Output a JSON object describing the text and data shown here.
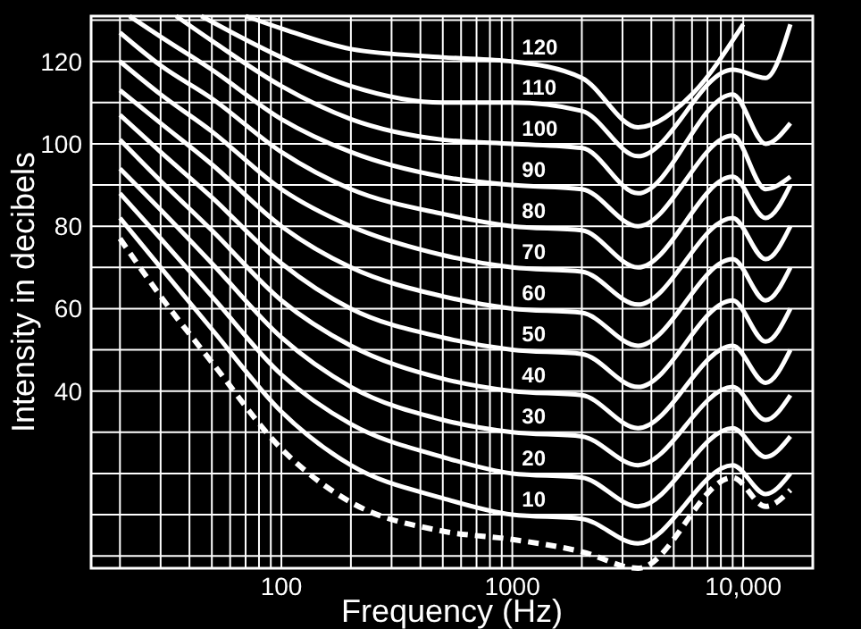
{
  "chart_data": {
    "type": "line",
    "xlabel": "Frequency (Hz)",
    "ylabel": "Intensity in decibels",
    "log": "x",
    "grid": true,
    "marker": "none",
    "xlim": [
      15,
      20000
    ],
    "ylim": [
      -3,
      131
    ],
    "xticks": [
      {
        "value": 20,
        "label": null
      },
      {
        "value": 30,
        "label": null
      },
      {
        "value": 40,
        "label": null
      },
      {
        "value": 50,
        "label": null
      },
      {
        "value": 60,
        "label": null
      },
      {
        "value": 70,
        "label": null
      },
      {
        "value": 80,
        "label": null
      },
      {
        "value": 90,
        "label": null
      },
      100,
      {
        "value": 200,
        "label": null
      },
      {
        "value": 300,
        "label": null
      },
      {
        "value": 400,
        "label": null
      },
      {
        "value": 500,
        "label": null
      },
      {
        "value": 600,
        "label": null
      },
      {
        "value": 700,
        "label": null
      },
      {
        "value": 800,
        "label": null
      },
      {
        "value": 900,
        "label": null
      },
      1000,
      {
        "value": 2000,
        "label": null
      },
      {
        "value": 3000,
        "label": null
      },
      {
        "value": 4000,
        "label": null
      },
      {
        "value": 5000,
        "label": null
      },
      {
        "value": 6000,
        "label": null
      },
      {
        "value": 7000,
        "label": null
      },
      {
        "value": 8000,
        "label": null
      },
      {
        "value": 9000,
        "label": null
      },
      {
        "value": 10000,
        "label": "10,000"
      }
    ],
    "yticks": [
      {
        "value": 0,
        "label": null
      },
      {
        "value": 10,
        "label": null
      },
      {
        "value": 20,
        "label": null
      },
      {
        "value": 30,
        "label": null
      },
      40,
      {
        "value": 50,
        "label": null
      },
      60,
      {
        "value": 70,
        "label": null
      },
      80,
      {
        "value": 90,
        "label": null
      },
      100,
      {
        "value": 110,
        "label": null
      },
      120,
      {
        "value": 130,
        "label": null
      }
    ],
    "x": [
      20,
      30,
      50,
      100,
      200,
      500,
      1000,
      2000,
      3500,
      9000,
      12500,
      16000
    ],
    "series": [
      {
        "color": "#ffffff",
        "line_style": "dashed",
        "values": [
          77,
          63,
          47,
          26,
          13,
          6,
          4,
          1,
          -3,
          19,
          12,
          16
        ]
      },
      {
        "name": "10",
        "color": "#ffffff",
        "line_style": "solid",
        "values": [
          82,
          70,
          55,
          35,
          22,
          14,
          10,
          9,
          3,
          22,
          15,
          20
        ]
      },
      {
        "name": "20",
        "color": "#ffffff",
        "line_style": "solid",
        "values": [
          88,
          77,
          63,
          44,
          32,
          24,
          20,
          19,
          12,
          31,
          24,
          29
        ]
      },
      {
        "name": "30",
        "color": "#ffffff",
        "line_style": "solid",
        "values": [
          94,
          84,
          71,
          53,
          41,
          33,
          30,
          29,
          22,
          41,
          33,
          39
        ]
      },
      {
        "name": "40",
        "color": "#ffffff",
        "line_style": "solid",
        "values": [
          101,
          91,
          79,
          62,
          51,
          43,
          40,
          39,
          31,
          51,
          42,
          50
        ]
      },
      {
        "name": "50",
        "color": "#ffffff",
        "line_style": "solid",
        "values": [
          107,
          98,
          87,
          71,
          60,
          53,
          50,
          49,
          41,
          62,
          52,
          60
        ]
      },
      {
        "name": "60",
        "color": "#ffffff",
        "line_style": "solid",
        "values": [
          113,
          105,
          95,
          80,
          70,
          63,
          60,
          59,
          51,
          72,
          62,
          70
        ]
      },
      {
        "name": "70",
        "color": "#ffffff",
        "line_style": "solid",
        "values": [
          120,
          112,
          103,
          89,
          80,
          73,
          70,
          69,
          61,
          82,
          72,
          80
        ]
      },
      {
        "name": "80",
        "color": "#ffffff",
        "line_style": "solid",
        "values": [
          127,
          119,
          111,
          98,
          89,
          83,
          80,
          79,
          70,
          92,
          82,
          90
        ]
      },
      {
        "name": "90",
        "color": "#ffffff",
        "line_style": "solid",
        "x": [
          22,
          30,
          50,
          100,
          200,
          500,
          1000,
          2000,
          3500,
          9000,
          12500,
          16000
        ],
        "values": [
          131,
          126,
          118,
          106,
          98,
          92,
          90,
          89,
          80,
          102,
          89,
          92
        ]
      },
      {
        "name": "100",
        "color": "#ffffff",
        "line_style": "solid",
        "x": [
          35,
          50,
          100,
          200,
          500,
          1000,
          2000,
          3500,
          9000,
          12500,
          16000
        ],
        "values": [
          131,
          125,
          114,
          106,
          101,
          100,
          99,
          88,
          112,
          100,
          105
        ]
      },
      {
        "name": "110",
        "color": "#ffffff",
        "line_style": "solid",
        "x": [
          45,
          100,
          200,
          500,
          1000,
          2000,
          3500,
          9000,
          12500,
          16000
        ],
        "values": [
          131,
          121,
          114,
          110,
          110,
          108,
          97,
          118,
          116,
          129
        ]
      },
      {
        "name": "120",
        "color": "#ffffff",
        "line_style": "solid",
        "x": [
          70,
          100,
          200,
          500,
          1000,
          2000,
          3500,
          6000,
          10000
        ],
        "values": [
          131,
          128,
          123,
          121,
          120,
          116,
          104,
          112,
          129
        ]
      }
    ]
  }
}
